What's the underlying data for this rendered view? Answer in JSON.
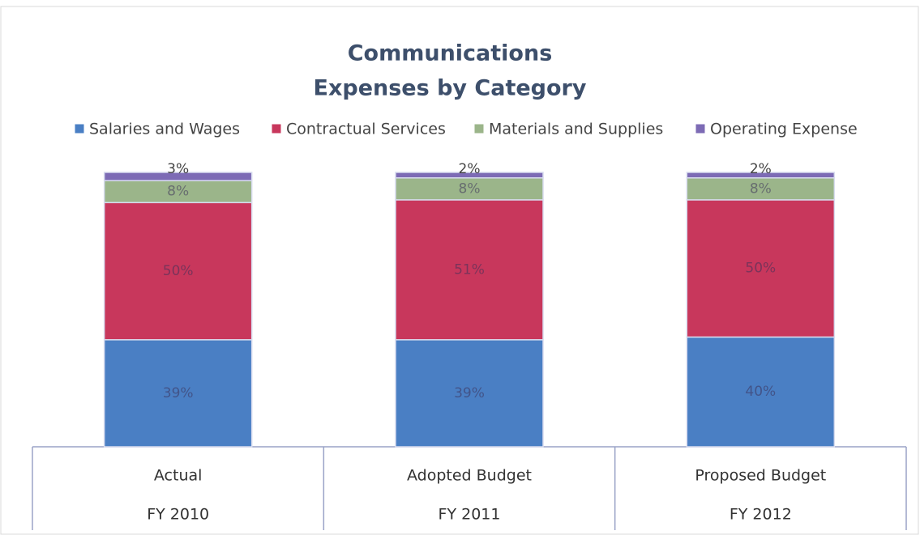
{
  "chart_data": {
    "type": "stacked_bar",
    "title": [
      "Communications",
      "Expenses by Category"
    ],
    "categories": [
      [
        "Actual",
        "FY 2010"
      ],
      [
        "Adopted Budget",
        "FY 2011"
      ],
      [
        "Proposed Budget",
        "FY 2012"
      ]
    ],
    "series": [
      {
        "name": "Salaries and Wages",
        "color": "#4a7fc4",
        "values": [
          39,
          39,
          40
        ],
        "value_labels": [
          "39%",
          "39%",
          "40%"
        ]
      },
      {
        "name": "Contractual Services",
        "color": "#c8375c",
        "values": [
          50,
          51,
          50
        ],
        "value_labels": [
          "50%",
          "51%",
          "50%"
        ]
      },
      {
        "name": "Materials and Supplies",
        "color": "#9bb58a",
        "values": [
          8,
          8,
          8
        ],
        "value_labels": [
          "8%",
          "8%",
          "8%"
        ]
      },
      {
        "name": "Operating Expense",
        "color": "#7d6bb5",
        "values": [
          3,
          2,
          2
        ],
        "value_labels": [
          "3%",
          "2%",
          "2%"
        ]
      }
    ]
  }
}
